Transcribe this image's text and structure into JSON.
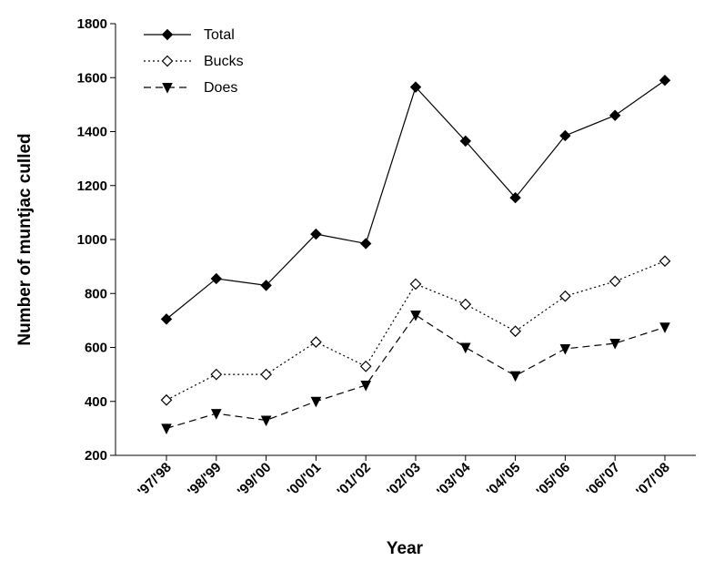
{
  "chart_data": {
    "type": "line",
    "xlabel": "Year",
    "ylabel": "Number of muntjac culled",
    "ylim": [
      200,
      1800
    ],
    "yticks": [
      200,
      400,
      600,
      800,
      1000,
      1200,
      1400,
      1600,
      1800
    ],
    "categories": [
      "'97/'98",
      "'98/'99",
      "'99/'00",
      "'00/'01",
      "'01/'02",
      "'02/'03",
      "'03/'04",
      "'04/'05",
      "'05/'06",
      "'06/'07",
      "'07/'08"
    ],
    "grid": false,
    "legend_position": "top-left",
    "series": [
      {
        "name": "Total",
        "marker": "filled-diamond",
        "line_style": "solid",
        "color": "#000000",
        "values": [
          705,
          855,
          830,
          1020,
          985,
          1565,
          1365,
          1155,
          1385,
          1460,
          1590
        ]
      },
      {
        "name": "Bucks",
        "marker": "open-diamond",
        "line_style": "dotted",
        "color": "#000000",
        "values": [
          405,
          500,
          500,
          620,
          530,
          835,
          760,
          660,
          790,
          845,
          920
        ]
      },
      {
        "name": "Does",
        "marker": "filled-triangle-down",
        "line_style": "dashed",
        "color": "#000000",
        "values": [
          300,
          355,
          330,
          400,
          460,
          720,
          600,
          495,
          595,
          615,
          675
        ]
      }
    ]
  }
}
